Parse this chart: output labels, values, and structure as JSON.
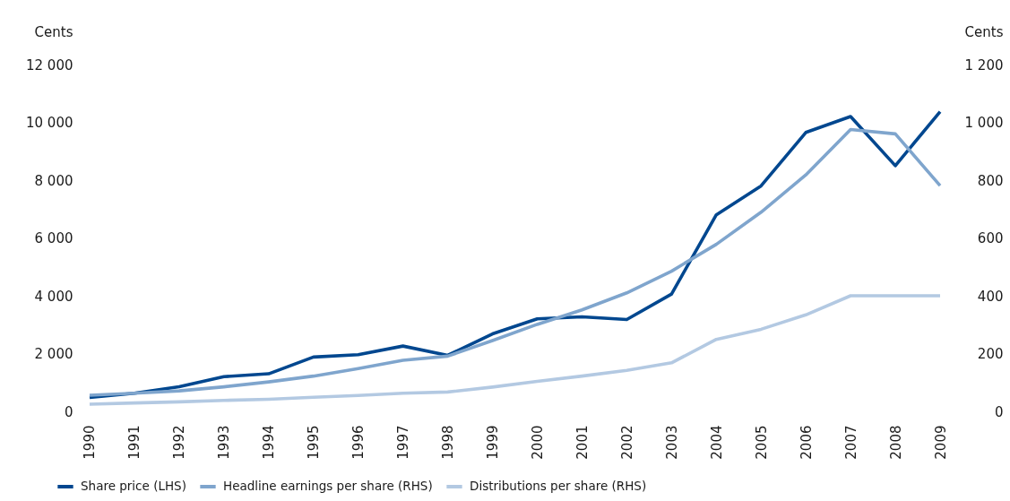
{
  "chart_data": {
    "type": "line",
    "ylabel": "Cents",
    "y2label": "Cents",
    "categories": [
      "1990",
      "1991",
      "1992",
      "1993",
      "1994",
      "1995",
      "1996",
      "1997",
      "1998",
      "1999",
      "2000",
      "2001",
      "2002",
      "2003",
      "2004",
      "2005",
      "2006",
      "2007",
      "2008",
      "2009"
    ],
    "series": [
      {
        "name": "Share price (LHS)",
        "color": "#00478f",
        "values": [
          480,
          630,
          850,
          1200,
          1300,
          1880,
          1960,
          2260,
          1940,
          2680,
          3200,
          3270,
          3180,
          4060,
          6800,
          7800,
          9650,
          10200,
          8500,
          10370
        ]
      },
      {
        "name": "Headline earnings per share (RHS)",
        "color": "#7fa5cd",
        "axis": "y2",
        "values": [
          56,
          63,
          71,
          85,
          102,
          122,
          148,
          177,
          191,
          245,
          301,
          351,
          410,
          485,
          578,
          689,
          818,
          975,
          960,
          781
        ]
      },
      {
        "name": "Distributions per share (RHS)",
        "color": "#b3c9e2",
        "axis": "y2",
        "values": [
          25,
          29,
          33,
          38,
          42,
          49,
          55,
          63,
          67,
          84,
          104,
          122,
          142,
          168,
          249,
          284,
          334,
          400,
          400,
          400
        ]
      }
    ],
    "ylim": [
      0,
      12000
    ],
    "yticks": [
      0,
      {
        "value": 2000,
        "label": "2 000"
      },
      {
        "value": 4000,
        "label": "4 000"
      },
      {
        "value": 6000,
        "label": "6 000"
      },
      {
        "value": 8000,
        "label": "8 000"
      },
      {
        "value": 10000,
        "label": "10 000"
      },
      {
        "value": 12000,
        "label": "12 000"
      }
    ],
    "y2lim": [
      0,
      1200
    ],
    "y2ticks": [
      0,
      200,
      400,
      600,
      800,
      {
        "value": 1000,
        "label": "1 000"
      },
      {
        "value": 1200,
        "label": "1 200"
      }
    ],
    "grid": false,
    "legend": "bottom"
  }
}
